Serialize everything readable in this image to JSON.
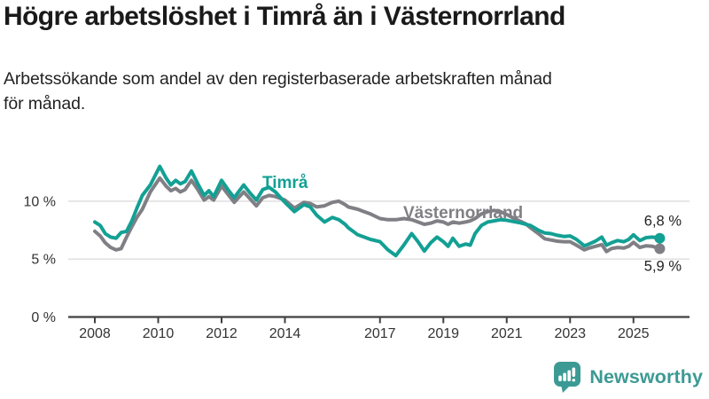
{
  "header": {
    "title": "Högre arbetslöshet i Timrå än i Västernorrland",
    "subtitle": "Arbetssökande som andel av den registerbaserade arbetskraften månad för månad."
  },
  "footer": {
    "brand": "Newsworthy",
    "brand_color": "#3c9a94",
    "icon": "newsworthy-bars-bubble-icon"
  },
  "colors": {
    "gridline": "#dcdcdc",
    "axis": "#404040",
    "tick_text": "#333333",
    "value_label_text": "#222222",
    "background": "#ffffff"
  },
  "chart_data": {
    "type": "line",
    "title": "Högre arbetslöshet i Timrå än i Västernorrland",
    "subtitle": "Arbetssökande som andel av den registerbaserade arbetskraften månad för månad.",
    "unit": "%",
    "grid": true,
    "legend_position": "inline-labels",
    "x_axis": {
      "tick_labels": [
        "2008",
        "2010",
        "2012",
        "2014",
        "2017",
        "2019",
        "2021",
        "2023",
        "2025"
      ],
      "tick_values": [
        2008,
        2010,
        2012,
        2014,
        2017,
        2019,
        2021,
        2023,
        2025
      ],
      "range": [
        2007.1,
        2026.7
      ]
    },
    "y_axis": {
      "tick_labels": [
        "0 %",
        "5 %",
        "10 %"
      ],
      "tick_values": [
        0,
        5,
        10
      ],
      "gridline_values": [
        5,
        10
      ],
      "range": [
        0,
        13.7
      ]
    },
    "x": [
      2008.0,
      2008.17,
      2008.33,
      2008.5,
      2008.67,
      2008.83,
      2009.0,
      2009.17,
      2009.33,
      2009.5,
      2009.75,
      2010.05,
      2010.25,
      2010.4,
      2010.55,
      2010.7,
      2010.85,
      2011.05,
      2011.25,
      2011.45,
      2011.6,
      2011.75,
      2012.0,
      2012.2,
      2012.4,
      2012.7,
      2012.9,
      2013.1,
      2013.3,
      2013.5,
      2013.7,
      2013.9,
      2014.0,
      2014.3,
      2014.6,
      2014.8,
      2015.0,
      2015.25,
      2015.5,
      2015.7,
      2015.9,
      2016.0,
      2016.3,
      2016.5,
      2016.7,
      2017.0,
      2017.25,
      2017.5,
      2017.75,
      2018.0,
      2018.2,
      2018.4,
      2018.6,
      2018.8,
      2019.0,
      2019.15,
      2019.3,
      2019.5,
      2019.7,
      2019.85,
      2020.0,
      2020.2,
      2020.4,
      2020.6,
      2020.8,
      2021.0,
      2021.2,
      2021.4,
      2021.6,
      2021.75,
      2022.0,
      2022.2,
      2022.4,
      2022.6,
      2022.8,
      2023.0,
      2023.2,
      2023.45,
      2023.6,
      2023.8,
      2024.0,
      2024.15,
      2024.3,
      2024.5,
      2024.7,
      2024.85,
      2025.0,
      2025.2,
      2025.4,
      2025.6,
      2025.83
    ],
    "series": [
      {
        "name": "Timrå",
        "slug": "timra",
        "color": "#13a094",
        "end_value": 6.8,
        "end_value_label": "6,8 %",
        "values": [
          8.2,
          7.9,
          7.2,
          6.9,
          6.8,
          7.3,
          7.4,
          8.3,
          9.4,
          10.5,
          11.4,
          13.0,
          12.0,
          11.4,
          11.8,
          11.5,
          11.7,
          12.6,
          11.5,
          10.5,
          10.9,
          10.4,
          11.8,
          11.0,
          10.3,
          11.4,
          10.7,
          10.1,
          11.0,
          11.2,
          10.8,
          10.2,
          9.9,
          9.1,
          9.7,
          9.5,
          8.8,
          8.2,
          8.6,
          8.4,
          8.0,
          7.7,
          7.1,
          6.9,
          6.7,
          6.5,
          5.8,
          5.3,
          6.2,
          7.2,
          6.5,
          5.7,
          6.4,
          6.9,
          6.5,
          6.1,
          6.8,
          6.1,
          6.3,
          6.2,
          7.2,
          7.9,
          8.2,
          8.3,
          8.4,
          8.35,
          8.25,
          8.15,
          8.0,
          7.9,
          7.5,
          7.25,
          7.2,
          7.05,
          6.95,
          7.0,
          6.7,
          6.15,
          6.3,
          6.55,
          6.9,
          6.2,
          6.4,
          6.6,
          6.5,
          6.7,
          7.1,
          6.6,
          6.85,
          6.9,
          6.8
        ]
      },
      {
        "name": "Västernorrland",
        "slug": "vasternorrland",
        "color": "#7f7f85",
        "end_value": 5.9,
        "end_value_label": "5,9 %",
        "values": [
          7.4,
          7.0,
          6.4,
          6.0,
          5.8,
          5.9,
          6.9,
          7.8,
          8.6,
          9.3,
          10.8,
          12.0,
          11.3,
          10.9,
          11.1,
          10.8,
          11.0,
          11.8,
          11.0,
          10.1,
          10.4,
          10.1,
          11.3,
          10.6,
          9.9,
          10.8,
          10.2,
          9.6,
          10.3,
          10.5,
          10.4,
          10.2,
          10.1,
          9.4,
          9.9,
          9.8,
          9.5,
          9.6,
          9.9,
          10.0,
          9.7,
          9.5,
          9.3,
          9.1,
          8.9,
          8.5,
          8.4,
          8.4,
          8.5,
          8.4,
          8.2,
          8.0,
          8.1,
          8.3,
          8.2,
          8.0,
          8.2,
          8.1,
          8.2,
          8.3,
          8.5,
          8.9,
          9.1,
          9.2,
          9.1,
          8.85,
          8.55,
          8.3,
          8.05,
          7.7,
          7.2,
          6.75,
          6.65,
          6.55,
          6.5,
          6.5,
          6.2,
          5.8,
          5.95,
          6.1,
          6.25,
          5.65,
          5.9,
          6.0,
          5.95,
          6.1,
          6.45,
          6.0,
          6.15,
          6.1,
          5.9
        ]
      }
    ]
  }
}
